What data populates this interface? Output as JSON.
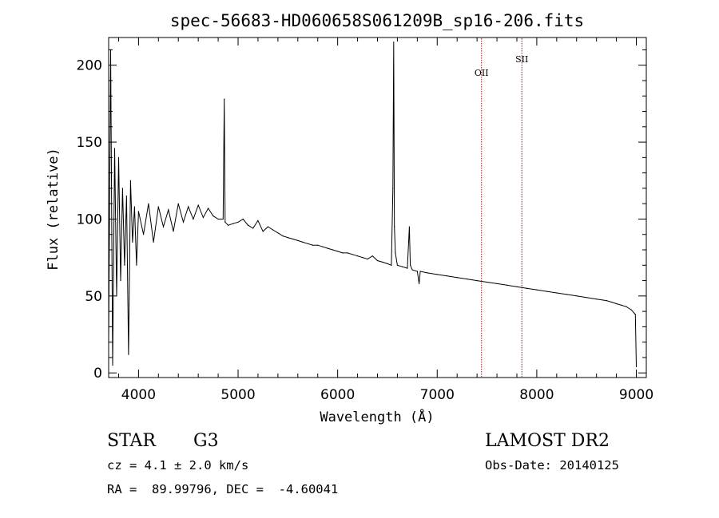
{
  "chart_data": {
    "type": "line",
    "title": "spec-56683-HD060658S061209B_sp16-206.fits",
    "xlabel": "Wavelength (Å)",
    "ylabel": "Flux (relative)",
    "xlim": [
      3700,
      9100
    ],
    "ylim": [
      -3,
      218
    ],
    "xticks": [
      4000,
      5000,
      6000,
      7000,
      8000,
      9000
    ],
    "yticks": [
      0,
      50,
      100,
      150,
      200
    ],
    "grid": false,
    "line_color": "#000000",
    "marker_color": "#a01818",
    "series": [
      {
        "x": [
          3700,
          3720,
          3740,
          3760,
          3780,
          3800,
          3820,
          3840,
          3860,
          3880,
          3900,
          3920,
          3940,
          3960,
          3980,
          4000,
          4050,
          4100,
          4150,
          4200,
          4250,
          4300,
          4350,
          4400,
          4450,
          4500,
          4550,
          4600,
          4650,
          4700,
          4750,
          4800,
          4850,
          4861,
          4870,
          4900,
          4950,
          5000,
          5050,
          5100,
          5150,
          5200,
          5250,
          5300,
          5350,
          5400,
          5450,
          5500,
          5550,
          5600,
          5650,
          5700,
          5750,
          5800,
          5850,
          5900,
          5950,
          6000,
          6050,
          6100,
          6150,
          6200,
          6250,
          6300,
          6350,
          6400,
          6450,
          6500,
          6540,
          6555,
          6563,
          6570,
          6580,
          6600,
          6650,
          6700,
          6720,
          6730,
          6750,
          6800,
          6818,
          6830,
          6900,
          7000,
          7100,
          7200,
          7300,
          7400,
          7500,
          7600,
          7700,
          7800,
          7900,
          8000,
          8100,
          8200,
          8300,
          8400,
          8500,
          8600,
          8700,
          8750,
          8800,
          8850,
          8900,
          8950,
          8990,
          9000
        ],
        "y": [
          20,
          210,
          5,
          146,
          50,
          140,
          60,
          120,
          70,
          115,
          12,
          125,
          85,
          108,
          70,
          105,
          90,
          110,
          85,
          108,
          95,
          106,
          92,
          110,
          98,
          108,
          100,
          109,
          101,
          107,
          102,
          100,
          100,
          178,
          98,
          96,
          97,
          98,
          100,
          96,
          94,
          99,
          92,
          95,
          93,
          91,
          89,
          88,
          87,
          86,
          85,
          84,
          83,
          83,
          82,
          81,
          80,
          79,
          78,
          78,
          77,
          76,
          75,
          74,
          76,
          73,
          72,
          71,
          70,
          120,
          215,
          95,
          78,
          70,
          69,
          68,
          95,
          70,
          67,
          66,
          58,
          66,
          65,
          64,
          63,
          62,
          61,
          60,
          59,
          58,
          57,
          56,
          55,
          54,
          53,
          52,
          51,
          50,
          49,
          48,
          47,
          46,
          45,
          44,
          43,
          41,
          38,
          4
        ]
      }
    ],
    "markers": [
      {
        "label": "OII",
        "x": 7445
      },
      {
        "label": "SII",
        "x": 7850
      }
    ]
  },
  "info": {
    "object_class": "STAR",
    "subclass": "G3",
    "survey": "LAMOST DR2",
    "cz": "cz = 4.1 ± 2.0 km/s",
    "obs_date": "Obs-Date: 20140125",
    "coords": "RA =  89.99796, DEC =  -4.60041"
  }
}
